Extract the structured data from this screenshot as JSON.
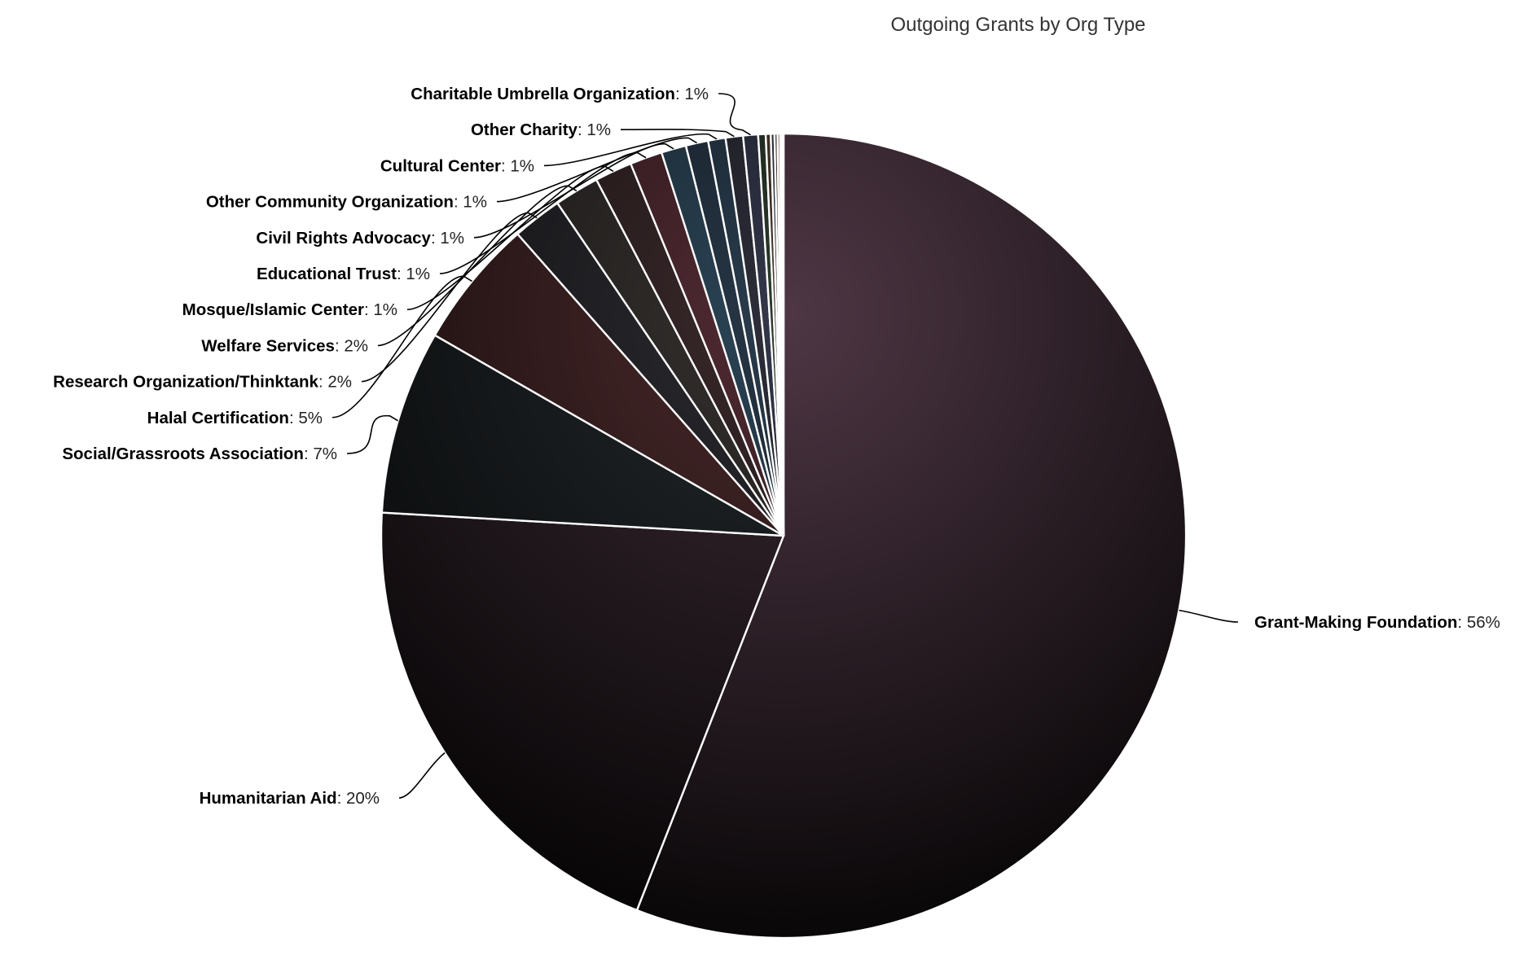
{
  "chart_data": {
    "type": "pie",
    "title": "Outgoing Grants by Org Type",
    "start": "twelve-o-clock",
    "direction": "clockwise",
    "slices": [
      {
        "name": "Grant-Making Foundation",
        "value": 56.0,
        "label_pct": "56%",
        "color": "#4f3745",
        "side": "right"
      },
      {
        "name": "Humanitarian Aid",
        "value": 20.0,
        "label_pct": "20%",
        "color": "#3a2a33",
        "side": "left"
      },
      {
        "name": "Social/Grassroots Association",
        "value": 7.4,
        "label_pct": "7%",
        "color": "#24292d",
        "side": "left"
      },
      {
        "name": "Halal Certification",
        "value": 5.2,
        "label_pct": "5%",
        "color": "#4c2a2c",
        "side": "left"
      },
      {
        "name": "Research Organization/Thinktank",
        "value": 2.0,
        "label_pct": "2%",
        "color": "#2c2c31",
        "side": "left"
      },
      {
        "name": "Welfare Services",
        "value": 1.8,
        "label_pct": "2%",
        "color": "#373230",
        "side": "left"
      },
      {
        "name": "Mosque/Islamic Center",
        "value": 1.5,
        "label_pct": "1%",
        "color": "#3b2a2c",
        "side": "left"
      },
      {
        "name": "Educational Trust",
        "value": 1.3,
        "label_pct": "1%",
        "color": "#532c34",
        "side": "left"
      },
      {
        "name": "Civil Rights Advocacy",
        "value": 1.0,
        "label_pct": "1%",
        "color": "#2d4658",
        "side": "left"
      },
      {
        "name": "Other Community Organization",
        "value": 0.9,
        "label_pct": "1%",
        "color": "#283747",
        "side": "left"
      },
      {
        "name": "Cultural Center",
        "value": 0.7,
        "label_pct": "1%",
        "color": "#2a3d4e",
        "side": "left"
      },
      {
        "name": "Other Charity",
        "value": 0.7,
        "label_pct": "1%",
        "color": "#2e2e3a",
        "side": "left"
      },
      {
        "name": "Charitable Umbrella Organization",
        "value": 0.6,
        "label_pct": "1%",
        "color": "#33374a",
        "side": "left"
      },
      {
        "name": "",
        "value": 0.3,
        "label_pct": "",
        "color": "#2c3a2c",
        "side": "none"
      },
      {
        "name": "",
        "value": 0.2,
        "label_pct": "",
        "color": "#4a3a30",
        "side": "none"
      },
      {
        "name": "",
        "value": 0.15,
        "label_pct": "",
        "color": "#3a3a4a",
        "side": "none"
      },
      {
        "name": "",
        "value": 0.12,
        "label_pct": "",
        "color": "#4a4038",
        "side": "none"
      },
      {
        "name": "",
        "value": 0.1,
        "label_pct": "",
        "color": "#554a40",
        "side": "none"
      },
      {
        "name": "",
        "value": 0.08,
        "label_pct": "",
        "color": "#5a5048",
        "side": "none"
      },
      {
        "name": "",
        "value": 0.06,
        "label_pct": "",
        "color": "#6a5a50",
        "side": "none"
      }
    ],
    "legend": "none",
    "data_labels": "outside-with-connectors"
  }
}
